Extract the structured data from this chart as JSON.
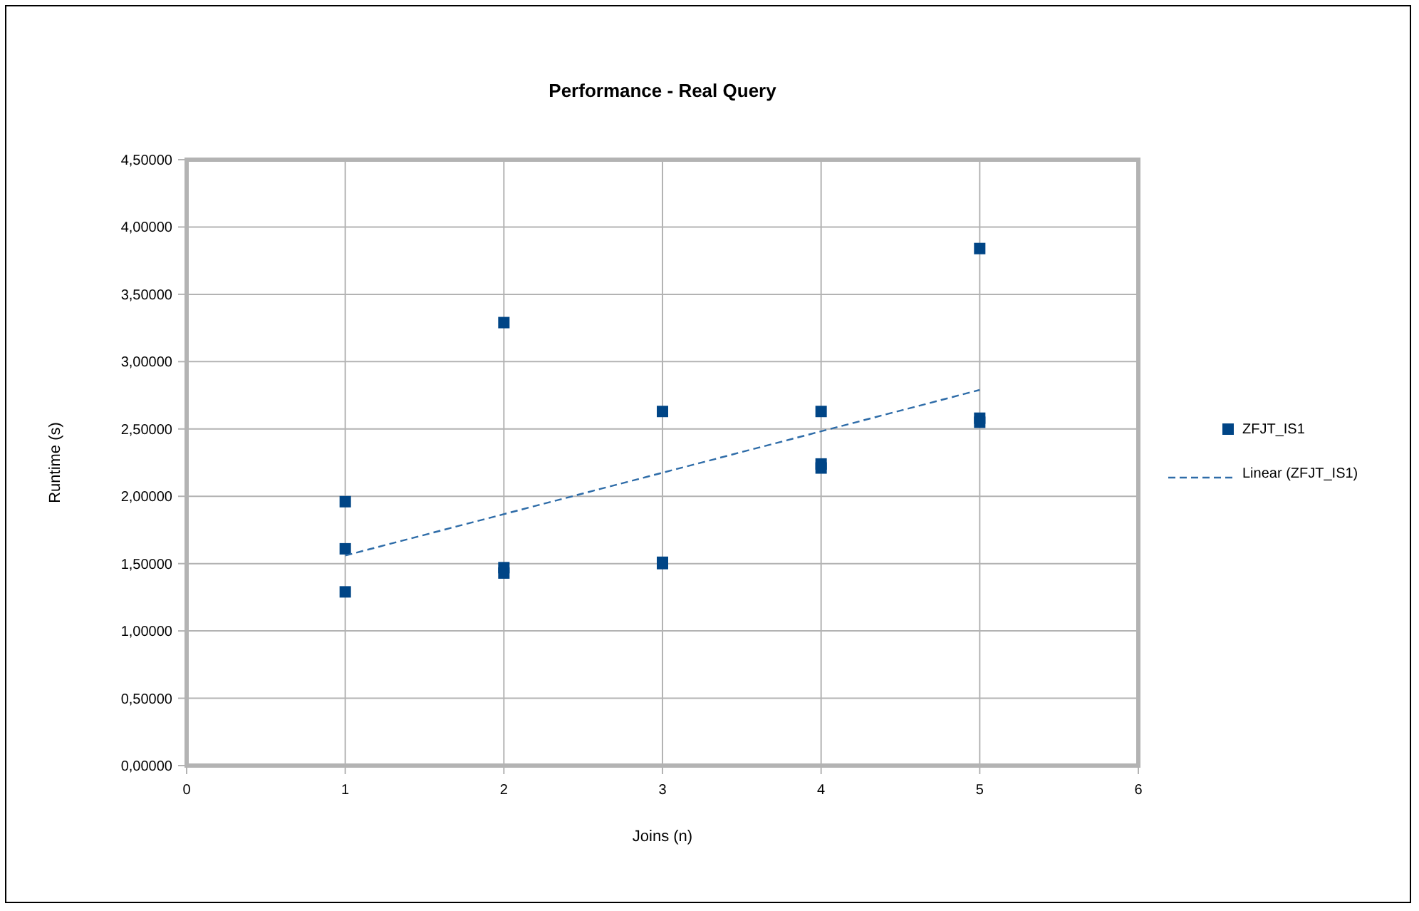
{
  "chart_data": {
    "type": "scatter",
    "title": "Performance - Real Query",
    "xlabel": "Joins (n)",
    "ylabel": "Runtime (s)",
    "xlim": [
      0,
      6
    ],
    "xticks": [
      0,
      1,
      2,
      3,
      4,
      5,
      6
    ],
    "ylim": [
      0,
      4.5
    ],
    "yticks": [
      {
        "value": 0,
        "label": "0,00000"
      },
      {
        "value": 0.5,
        "label": "0,50000"
      },
      {
        "value": 1,
        "label": "1,00000"
      },
      {
        "value": 1.5,
        "label": "1,50000"
      },
      {
        "value": 2,
        "label": "2,00000"
      },
      {
        "value": 2.5,
        "label": "2,50000"
      },
      {
        "value": 3,
        "label": "3,00000"
      },
      {
        "value": 3.5,
        "label": "3,50000"
      },
      {
        "value": 4,
        "label": "4,00000"
      },
      {
        "value": 4.5,
        "label": "4,50000"
      }
    ],
    "grid": true,
    "legend": "right",
    "marker": "square",
    "series": [
      {
        "name": "ZFJT_IS1",
        "color": "#004586",
        "x": [
          1,
          1,
          1,
          2,
          2,
          2,
          3,
          3,
          3,
          4,
          4,
          4,
          5,
          5,
          5
        ],
        "values": [
          1.96,
          1.61,
          1.29,
          3.29,
          1.47,
          1.43,
          2.63,
          1.51,
          1.5,
          2.63,
          2.24,
          2.21,
          3.84,
          2.58,
          2.55
        ]
      },
      {
        "name": "Linear (ZFJT_IS1)",
        "type": "line",
        "color": "#2e6ca8",
        "line_style": "dashed",
        "marker": "none",
        "x": [
          1,
          5
        ],
        "values": [
          1.56,
          2.79
        ]
      }
    ]
  }
}
